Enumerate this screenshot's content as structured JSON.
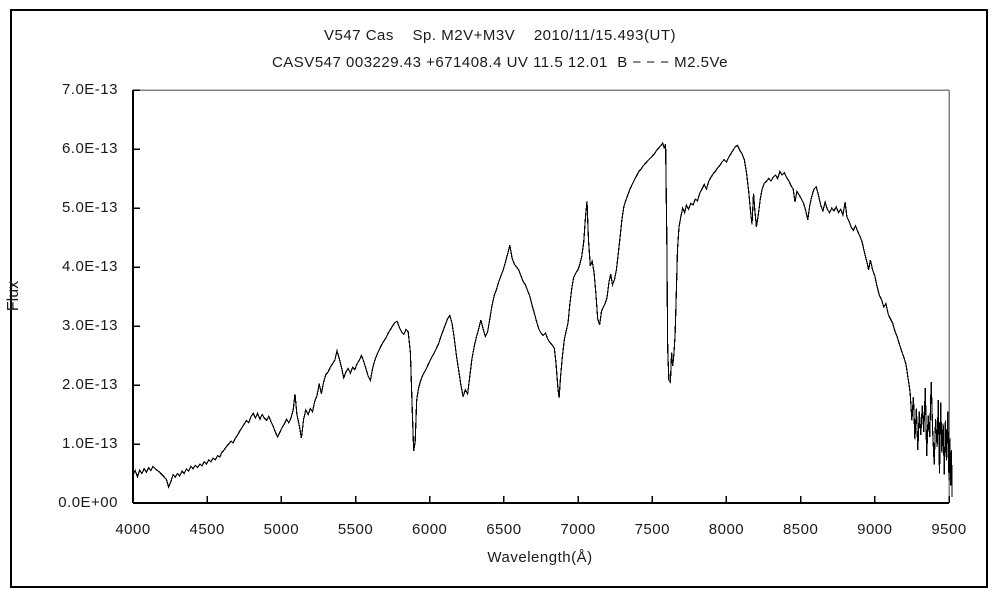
{
  "title": {
    "line1": "V547 Cas    Sp. M2V+M3V    2010/11/15.493(UT)",
    "line2": "CASV547 003229.43 +671408.4 UV 11.5 12.01  B − − − M2.5Ve"
  },
  "axes": {
    "x": {
      "label": "Wavelength(Å)",
      "min": 4000,
      "max": 9500,
      "ticks": [
        4000,
        4500,
        5000,
        5500,
        6000,
        6500,
        7000,
        7500,
        8000,
        8500,
        9000,
        9500
      ]
    },
    "y": {
      "label": "Flux",
      "min": 0,
      "max": 7,
      "unit": "1e-13",
      "ticks": [
        {
          "v": 0,
          "label": "0.0E+00"
        },
        {
          "v": 1,
          "label": "1.0E-13"
        },
        {
          "v": 2,
          "label": "2.0E-13"
        },
        {
          "v": 3,
          "label": "3.0E-13"
        },
        {
          "v": 4,
          "label": "4.0E-13"
        },
        {
          "v": 5,
          "label": "5.0E-13"
        },
        {
          "v": 6,
          "label": "6.0E-13"
        },
        {
          "v": 7,
          "label": "7.0E-13"
        }
      ]
    }
  },
  "colors": {
    "line": "#000000",
    "axis": "#000000",
    "box_top_right": "#808080",
    "background": "#ffffff"
  },
  "chart_data": {
    "type": "line",
    "title": "V547 Cas  Sp. M2V+M3V  2010/11/15.493(UT) / CASV547 003229.43 +671408.4 UV 11.5 12.01 B − − − M2.5Ve",
    "xlabel": "Wavelength(Å)",
    "ylabel": "Flux",
    "xlim": [
      4000,
      9500
    ],
    "ylim": [
      0,
      7e-13
    ],
    "flux_unit": "1e-13 (flux values below are in units of 1e-13)",
    "legend": [],
    "grid": false,
    "points": [
      [
        4000,
        0.48
      ],
      [
        4015,
        0.55
      ],
      [
        4030,
        0.44
      ],
      [
        4045,
        0.56
      ],
      [
        4060,
        0.5
      ],
      [
        4075,
        0.58
      ],
      [
        4090,
        0.52
      ],
      [
        4105,
        0.6
      ],
      [
        4120,
        0.55
      ],
      [
        4135,
        0.62
      ],
      [
        4150,
        0.58
      ],
      [
        4165,
        0.55
      ],
      [
        4180,
        0.52
      ],
      [
        4195,
        0.48
      ],
      [
        4210,
        0.44
      ],
      [
        4225,
        0.4
      ],
      [
        4240,
        0.27
      ],
      [
        4255,
        0.36
      ],
      [
        4270,
        0.48
      ],
      [
        4285,
        0.44
      ],
      [
        4300,
        0.5
      ],
      [
        4315,
        0.46
      ],
      [
        4330,
        0.54
      ],
      [
        4345,
        0.5
      ],
      [
        4360,
        0.58
      ],
      [
        4375,
        0.54
      ],
      [
        4390,
        0.62
      ],
      [
        4405,
        0.58
      ],
      [
        4420,
        0.64
      ],
      [
        4435,
        0.6
      ],
      [
        4450,
        0.66
      ],
      [
        4465,
        0.63
      ],
      [
        4480,
        0.7
      ],
      [
        4495,
        0.66
      ],
      [
        4510,
        0.73
      ],
      [
        4525,
        0.7
      ],
      [
        4540,
        0.76
      ],
      [
        4555,
        0.73
      ],
      [
        4570,
        0.8
      ],
      [
        4585,
        0.78
      ],
      [
        4600,
        0.86
      ],
      [
        4615,
        0.9
      ],
      [
        4630,
        0.96
      ],
      [
        4645,
        1.0
      ],
      [
        4660,
        1.05
      ],
      [
        4675,
        1.02
      ],
      [
        4690,
        1.1
      ],
      [
        4705,
        1.15
      ],
      [
        4720,
        1.22
      ],
      [
        4735,
        1.28
      ],
      [
        4750,
        1.34
      ],
      [
        4765,
        1.4
      ],
      [
        4780,
        1.36
      ],
      [
        4795,
        1.46
      ],
      [
        4810,
        1.52
      ],
      [
        4825,
        1.44
      ],
      [
        4840,
        1.52
      ],
      [
        4855,
        1.42
      ],
      [
        4870,
        1.5
      ],
      [
        4885,
        1.44
      ],
      [
        4900,
        1.4
      ],
      [
        4915,
        1.47
      ],
      [
        4930,
        1.38
      ],
      [
        4945,
        1.3
      ],
      [
        4960,
        1.2
      ],
      [
        4975,
        1.12
      ],
      [
        4990,
        1.2
      ],
      [
        5005,
        1.28
      ],
      [
        5020,
        1.34
      ],
      [
        5035,
        1.42
      ],
      [
        5050,
        1.36
      ],
      [
        5065,
        1.44
      ],
      [
        5080,
        1.58
      ],
      [
        5092,
        1.85
      ],
      [
        5105,
        1.5
      ],
      [
        5120,
        1.32
      ],
      [
        5135,
        1.1
      ],
      [
        5150,
        1.42
      ],
      [
        5165,
        1.58
      ],
      [
        5180,
        1.5
      ],
      [
        5195,
        1.6
      ],
      [
        5210,
        1.55
      ],
      [
        5225,
        1.72
      ],
      [
        5240,
        1.82
      ],
      [
        5255,
        2.02
      ],
      [
        5270,
        1.85
      ],
      [
        5285,
        2.05
      ],
      [
        5300,
        2.18
      ],
      [
        5315,
        2.22
      ],
      [
        5330,
        2.3
      ],
      [
        5345,
        2.36
      ],
      [
        5360,
        2.42
      ],
      [
        5375,
        2.58
      ],
      [
        5390,
        2.45
      ],
      [
        5405,
        2.3
      ],
      [
        5420,
        2.12
      ],
      [
        5435,
        2.22
      ],
      [
        5450,
        2.28
      ],
      [
        5465,
        2.2
      ],
      [
        5480,
        2.3
      ],
      [
        5495,
        2.26
      ],
      [
        5510,
        2.36
      ],
      [
        5525,
        2.42
      ],
      [
        5540,
        2.5
      ],
      [
        5555,
        2.4
      ],
      [
        5570,
        2.28
      ],
      [
        5585,
        2.15
      ],
      [
        5600,
        2.08
      ],
      [
        5615,
        2.28
      ],
      [
        5630,
        2.42
      ],
      [
        5645,
        2.52
      ],
      [
        5660,
        2.6
      ],
      [
        5675,
        2.68
      ],
      [
        5690,
        2.74
      ],
      [
        5705,
        2.8
      ],
      [
        5720,
        2.88
      ],
      [
        5735,
        2.94
      ],
      [
        5750,
        3.0
      ],
      [
        5765,
        3.06
      ],
      [
        5780,
        3.08
      ],
      [
        5795,
        2.98
      ],
      [
        5810,
        2.9
      ],
      [
        5825,
        2.86
      ],
      [
        5840,
        2.94
      ],
      [
        5855,
        2.9
      ],
      [
        5870,
        2.55
      ],
      [
        5882,
        1.6
      ],
      [
        5892,
        0.88
      ],
      [
        5902,
        1.05
      ],
      [
        5912,
        1.75
      ],
      [
        5925,
        1.95
      ],
      [
        5940,
        2.08
      ],
      [
        5955,
        2.18
      ],
      [
        5970,
        2.24
      ],
      [
        5985,
        2.32
      ],
      [
        6000,
        2.4
      ],
      [
        6015,
        2.48
      ],
      [
        6030,
        2.54
      ],
      [
        6045,
        2.62
      ],
      [
        6060,
        2.7
      ],
      [
        6075,
        2.82
      ],
      [
        6090,
        2.92
      ],
      [
        6105,
        3.02
      ],
      [
        6120,
        3.12
      ],
      [
        6135,
        3.18
      ],
      [
        6150,
        3.05
      ],
      [
        6165,
        2.8
      ],
      [
        6180,
        2.5
      ],
      [
        6195,
        2.25
      ],
      [
        6210,
        2.0
      ],
      [
        6225,
        1.8
      ],
      [
        6240,
        1.92
      ],
      [
        6255,
        1.85
      ],
      [
        6270,
        2.15
      ],
      [
        6285,
        2.45
      ],
      [
        6300,
        2.65
      ],
      [
        6315,
        2.82
      ],
      [
        6330,
        2.95
      ],
      [
        6345,
        3.1
      ],
      [
        6360,
        2.95
      ],
      [
        6375,
        2.82
      ],
      [
        6390,
        2.9
      ],
      [
        6405,
        3.12
      ],
      [
        6420,
        3.35
      ],
      [
        6435,
        3.52
      ],
      [
        6450,
        3.62
      ],
      [
        6465,
        3.75
      ],
      [
        6480,
        3.85
      ],
      [
        6495,
        3.95
      ],
      [
        6510,
        4.08
      ],
      [
        6525,
        4.22
      ],
      [
        6540,
        4.37
      ],
      [
        6555,
        4.15
      ],
      [
        6570,
        4.05
      ],
      [
        6585,
        4.0
      ],
      [
        6600,
        3.95
      ],
      [
        6615,
        3.85
      ],
      [
        6630,
        3.75
      ],
      [
        6645,
        3.7
      ],
      [
        6660,
        3.6
      ],
      [
        6675,
        3.5
      ],
      [
        6690,
        3.35
      ],
      [
        6705,
        3.22
      ],
      [
        6720,
        3.08
      ],
      [
        6735,
        2.95
      ],
      [
        6750,
        2.88
      ],
      [
        6765,
        2.84
      ],
      [
        6780,
        2.88
      ],
      [
        6795,
        2.78
      ],
      [
        6810,
        2.72
      ],
      [
        6825,
        2.68
      ],
      [
        6840,
        2.62
      ],
      [
        6852,
        2.35
      ],
      [
        6864,
        1.95
      ],
      [
        6872,
        1.78
      ],
      [
        6882,
        2.15
      ],
      [
        6895,
        2.5
      ],
      [
        6908,
        2.78
      ],
      [
        6920,
        2.92
      ],
      [
        6932,
        3.05
      ],
      [
        6945,
        3.38
      ],
      [
        6958,
        3.65
      ],
      [
        6970,
        3.82
      ],
      [
        6985,
        3.9
      ],
      [
        7000,
        3.96
      ],
      [
        7012,
        4.05
      ],
      [
        7025,
        4.18
      ],
      [
        7038,
        4.42
      ],
      [
        7050,
        4.85
      ],
      [
        7060,
        5.12
      ],
      [
        7070,
        4.45
      ],
      [
        7082,
        4.02
      ],
      [
        7095,
        4.1
      ],
      [
        7108,
        3.9
      ],
      [
        7120,
        3.55
      ],
      [
        7132,
        3.12
      ],
      [
        7145,
        3.02
      ],
      [
        7158,
        3.25
      ],
      [
        7170,
        3.32
      ],
      [
        7182,
        3.38
      ],
      [
        7195,
        3.48
      ],
      [
        7208,
        3.75
      ],
      [
        7220,
        3.88
      ],
      [
        7232,
        3.7
      ],
      [
        7245,
        3.78
      ],
      [
        7258,
        3.95
      ],
      [
        7270,
        4.2
      ],
      [
        7282,
        4.48
      ],
      [
        7295,
        4.8
      ],
      [
        7308,
        5.02
      ],
      [
        7320,
        5.12
      ],
      [
        7335,
        5.22
      ],
      [
        7350,
        5.32
      ],
      [
        7365,
        5.4
      ],
      [
        7380,
        5.48
      ],
      [
        7395,
        5.55
      ],
      [
        7410,
        5.62
      ],
      [
        7425,
        5.66
      ],
      [
        7440,
        5.72
      ],
      [
        7455,
        5.76
      ],
      [
        7470,
        5.8
      ],
      [
        7485,
        5.84
      ],
      [
        7500,
        5.88
      ],
      [
        7515,
        5.92
      ],
      [
        7530,
        5.98
      ],
      [
        7545,
        6.02
      ],
      [
        7558,
        6.06
      ],
      [
        7570,
        6.1
      ],
      [
        7580,
        6.02
      ],
      [
        7590,
        6.08
      ],
      [
        7598,
        4.5
      ],
      [
        7604,
        2.6
      ],
      [
        7612,
        2.08
      ],
      [
        7622,
        2.05
      ],
      [
        7630,
        2.55
      ],
      [
        7638,
        2.32
      ],
      [
        7646,
        2.52
      ],
      [
        7654,
        2.85
      ],
      [
        7662,
        3.55
      ],
      [
        7670,
        4.3
      ],
      [
        7680,
        4.68
      ],
      [
        7692,
        4.85
      ],
      [
        7705,
        5.0
      ],
      [
        7718,
        4.92
      ],
      [
        7730,
        5.05
      ],
      [
        7745,
        4.98
      ],
      [
        7760,
        5.08
      ],
      [
        7775,
        5.05
      ],
      [
        7790,
        5.15
      ],
      [
        7805,
        5.12
      ],
      [
        7820,
        5.25
      ],
      [
        7835,
        5.32
      ],
      [
        7850,
        5.4
      ],
      [
        7865,
        5.32
      ],
      [
        7880,
        5.45
      ],
      [
        7895,
        5.52
      ],
      [
        7910,
        5.58
      ],
      [
        7925,
        5.62
      ],
      [
        7940,
        5.68
      ],
      [
        7955,
        5.72
      ],
      [
        7970,
        5.78
      ],
      [
        7985,
        5.82
      ],
      [
        8000,
        5.78
      ],
      [
        8015,
        5.86
      ],
      [
        8030,
        5.92
      ],
      [
        8045,
        5.98
      ],
      [
        8060,
        6.04
      ],
      [
        8075,
        6.06
      ],
      [
        8090,
        5.98
      ],
      [
        8105,
        5.92
      ],
      [
        8120,
        5.82
      ],
      [
        8135,
        5.6
      ],
      [
        8150,
        5.28
      ],
      [
        8162,
        4.95
      ],
      [
        8172,
        4.72
      ],
      [
        8182,
        5.25
      ],
      [
        8192,
        4.95
      ],
      [
        8202,
        4.68
      ],
      [
        8215,
        4.9
      ],
      [
        8228,
        5.15
      ],
      [
        8240,
        5.32
      ],
      [
        8255,
        5.42
      ],
      [
        8270,
        5.45
      ],
      [
        8285,
        5.5
      ],
      [
        8300,
        5.46
      ],
      [
        8315,
        5.52
      ],
      [
        8330,
        5.56
      ],
      [
        8345,
        5.5
      ],
      [
        8360,
        5.62
      ],
      [
        8375,
        5.56
      ],
      [
        8390,
        5.6
      ],
      [
        8405,
        5.52
      ],
      [
        8420,
        5.46
      ],
      [
        8435,
        5.38
      ],
      [
        8450,
        5.32
      ],
      [
        8462,
        5.1
      ],
      [
        8475,
        5.28
      ],
      [
        8490,
        5.22
      ],
      [
        8505,
        5.15
      ],
      [
        8520,
        5.08
      ],
      [
        8535,
        4.95
      ],
      [
        8548,
        4.8
      ],
      [
        8562,
        5.05
      ],
      [
        8575,
        5.2
      ],
      [
        8590,
        5.32
      ],
      [
        8605,
        5.36
      ],
      [
        8620,
        5.22
      ],
      [
        8635,
        5.05
      ],
      [
        8650,
        4.95
      ],
      [
        8665,
        5.1
      ],
      [
        8680,
        4.98
      ],
      [
        8695,
        4.92
      ],
      [
        8710,
        5.0
      ],
      [
        8725,
        4.95
      ],
      [
        8740,
        5.02
      ],
      [
        8755,
        4.92
      ],
      [
        8770,
        4.98
      ],
      [
        8785,
        4.88
      ],
      [
        8800,
        5.1
      ],
      [
        8812,
        4.85
      ],
      [
        8825,
        4.78
      ],
      [
        8840,
        4.68
      ],
      [
        8855,
        4.62
      ],
      [
        8870,
        4.7
      ],
      [
        8885,
        4.6
      ],
      [
        8900,
        4.52
      ],
      [
        8915,
        4.42
      ],
      [
        8930,
        4.25
      ],
      [
        8945,
        4.1
      ],
      [
        8958,
        3.95
      ],
      [
        8970,
        4.12
      ],
      [
        8985,
        3.95
      ],
      [
        9000,
        3.85
      ],
      [
        9015,
        3.68
      ],
      [
        9030,
        3.52
      ],
      [
        9045,
        3.45
      ],
      [
        9060,
        3.32
      ],
      [
        9075,
        3.38
      ],
      [
        9090,
        3.2
      ],
      [
        9105,
        3.12
      ],
      [
        9120,
        3.05
      ],
      [
        9135,
        2.92
      ],
      [
        9150,
        2.82
      ],
      [
        9165,
        2.7
      ],
      [
        9180,
        2.58
      ],
      [
        9195,
        2.48
      ],
      [
        9210,
        2.35
      ],
      [
        9225,
        2.1
      ],
      [
        9238,
        1.88
      ],
      [
        9250,
        1.4
      ],
      [
        9260,
        1.8
      ],
      [
        9270,
        1.08
      ],
      [
        9280,
        1.6
      ],
      [
        9290,
        0.9
      ],
      [
        9300,
        1.55
      ],
      [
        9310,
        1.15
      ],
      [
        9320,
        1.65
      ],
      [
        9330,
        1.2
      ],
      [
        9340,
        1.95
      ],
      [
        9350,
        0.8
      ],
      [
        9360,
        1.48
      ],
      [
        9370,
        1.12
      ],
      [
        9380,
        2.05
      ],
      [
        9390,
        1.2
      ],
      [
        9400,
        0.65
      ],
      [
        9410,
        1.42
      ],
      [
        9420,
        0.95
      ],
      [
        9428,
        1.75
      ],
      [
        9436,
        0.5
      ],
      [
        9444,
        1.7
      ],
      [
        9452,
        0.85
      ],
      [
        9460,
        1.35
      ],
      [
        9468,
        0.48
      ],
      [
        9476,
        1.4
      ],
      [
        9484,
        0.72
      ],
      [
        9492,
        1.55
      ],
      [
        9500,
        0.38
      ],
      [
        9506,
        1.1
      ],
      [
        9512,
        0.3
      ],
      [
        9517,
        0.9
      ],
      [
        9520,
        0.1
      ]
    ]
  }
}
